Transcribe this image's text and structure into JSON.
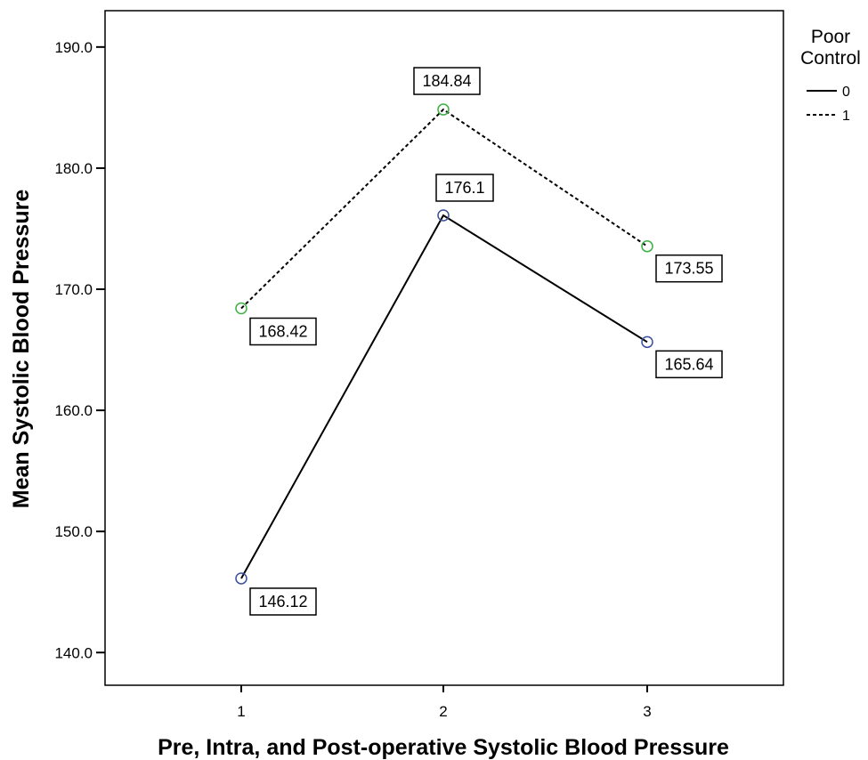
{
  "chart_data": {
    "type": "line",
    "title": "",
    "xlabel": "Pre, Intra, and Post-operative Systolic Blood Pressure",
    "ylabel": "Mean Systolic Blood Pressure",
    "categories": [
      "1",
      "2",
      "3"
    ],
    "y_ticks": [
      "140.0",
      "150.0",
      "160.0",
      "170.0",
      "180.0",
      "190.0"
    ],
    "y_tick_values": [
      140,
      150,
      160,
      170,
      180,
      190
    ],
    "ylim": [
      137.3,
      193
    ],
    "grid": false,
    "legend": {
      "title_lines": [
        "Poor",
        "Control"
      ],
      "placement": "right"
    },
    "series": [
      {
        "name": "0",
        "values": [
          146.12,
          176.1,
          165.64
        ],
        "labels": [
          "146.12",
          "176.1",
          "165.64"
        ],
        "line_style": "solid",
        "line_color": "#000000",
        "marker": "circle",
        "marker_color": "#3b4fa0"
      },
      {
        "name": "1",
        "values": [
          168.42,
          184.84,
          173.55
        ],
        "labels": [
          "168.42",
          "184.84",
          "173.55"
        ],
        "line_style": "dashed",
        "line_color": "#000000",
        "marker": "circle",
        "marker_color": "#3cb043"
      }
    ]
  }
}
